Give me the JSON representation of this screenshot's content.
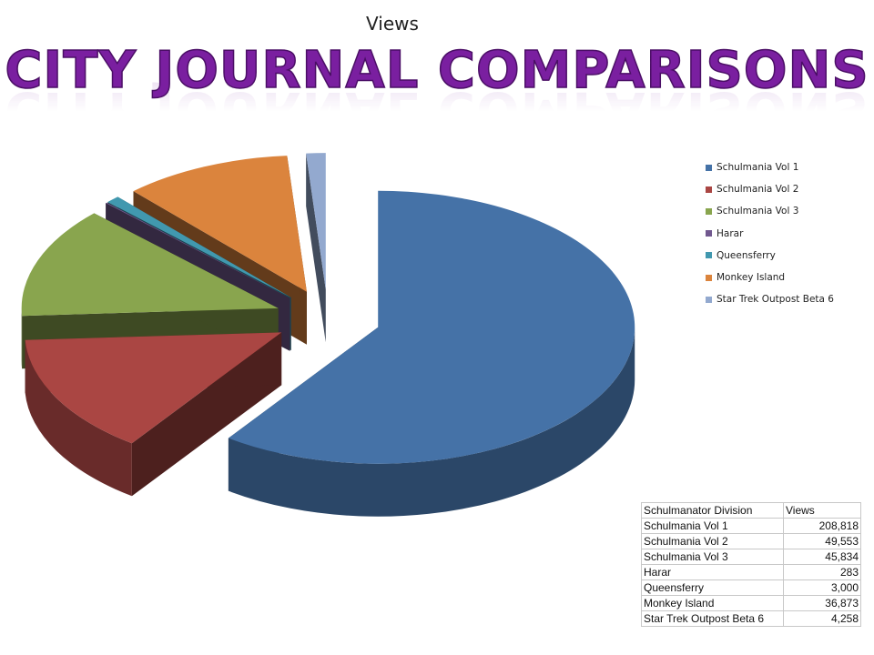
{
  "chart_title": "Views",
  "headline": "City Journal Comparisons",
  "chart_data": {
    "type": "pie",
    "title": "Views",
    "style": "3d-exploded",
    "legend_position": "right",
    "categories": [
      "Schulmania Vol 1",
      "Schulmania Vol 2",
      "Schulmania Vol 3",
      "Harar",
      "Queensferry",
      "Monkey Island",
      "Star Trek Outpost Beta 6"
    ],
    "values": [
      208818,
      49553,
      45834,
      283,
      3000,
      36873,
      4258
    ],
    "colors": [
      "#4572A7",
      "#AA4643",
      "#89A54E",
      "#71588F",
      "#4198AF",
      "#DB843D",
      "#93A9CF"
    ]
  },
  "table": {
    "headers": [
      "Schulmanator Division",
      "Views"
    ],
    "rows": [
      [
        "Schulmania Vol 1",
        "208,818"
      ],
      [
        "Schulmania Vol 2",
        "49,553"
      ],
      [
        "Schulmania Vol 3",
        "45,834"
      ],
      [
        "Harar",
        "283"
      ],
      [
        "Queensferry",
        "3,000"
      ],
      [
        "Monkey Island",
        "36,873"
      ],
      [
        "Star Trek Outpost Beta 6",
        "4,258"
      ]
    ]
  }
}
